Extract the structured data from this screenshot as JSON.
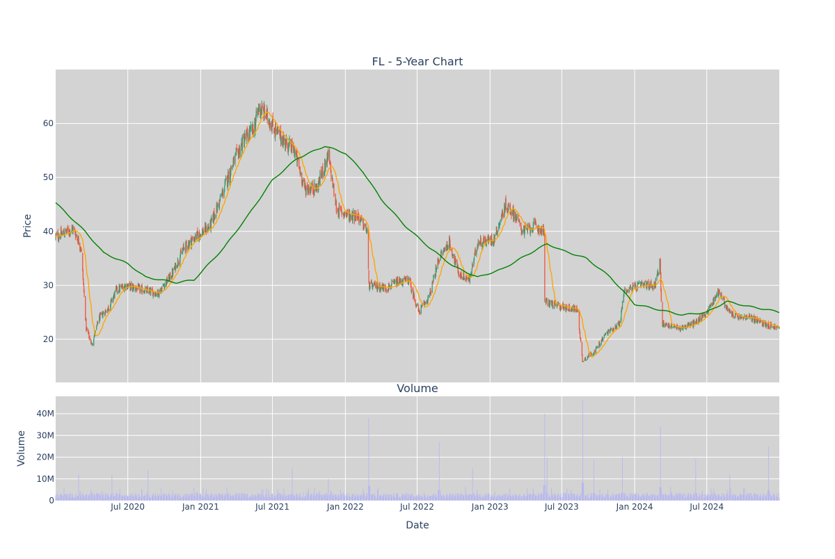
{
  "chart_data": [
    {
      "type": "candlestick",
      "title": "FL - 5-Year Chart",
      "xlabel": "",
      "ylabel": "Price",
      "x_range": [
        "2020-01-01",
        "2024-12-31"
      ],
      "ylim": [
        12,
        70
      ],
      "yticks": [
        20,
        30,
        40,
        50,
        60
      ],
      "grid": true,
      "colors": {
        "increasing": "#3d9970",
        "decreasing": "#ef553b",
        "ma_short": "#ffa500",
        "ma_long": "#008000",
        "plot_bg": "#d3d3d3"
      },
      "close_anchors": [
        [
          "2020-01-01",
          39
        ],
        [
          "2020-02-15",
          40.5
        ],
        [
          "2020-03-05",
          37
        ],
        [
          "2020-03-18",
          22
        ],
        [
          "2020-04-01",
          19
        ],
        [
          "2020-04-20",
          24
        ],
        [
          "2020-05-15",
          26
        ],
        [
          "2020-06-01",
          29
        ],
        [
          "2020-06-25",
          30
        ],
        [
          "2020-08-15",
          29
        ],
        [
          "2020-09-15",
          28.5
        ],
        [
          "2020-10-20",
          32
        ],
        [
          "2020-11-20",
          37
        ],
        [
          "2020-12-20",
          39
        ],
        [
          "2021-01-25",
          41
        ],
        [
          "2021-02-20",
          46
        ],
        [
          "2021-03-20",
          52
        ],
        [
          "2021-04-20",
          57
        ],
        [
          "2021-05-15",
          59
        ],
        [
          "2021-05-28",
          63
        ],
        [
          "2021-06-20",
          61
        ],
        [
          "2021-07-15",
          58
        ],
        [
          "2021-08-10",
          56
        ],
        [
          "2021-08-25",
          55
        ],
        [
          "2021-09-20",
          48
        ],
        [
          "2021-10-20",
          48
        ],
        [
          "2021-11-19",
          54
        ],
        [
          "2021-12-10",
          44
        ],
        [
          "2022-01-10",
          43
        ],
        [
          "2022-01-31",
          43
        ],
        [
          "2022-02-25",
          40
        ],
        [
          "2022-03-01",
          30
        ],
        [
          "2022-04-15",
          29.5
        ],
        [
          "2022-05-10",
          30.5
        ],
        [
          "2022-06-10",
          31
        ],
        [
          "2022-07-05",
          25
        ],
        [
          "2022-08-01",
          28
        ],
        [
          "2022-08-25",
          35
        ],
        [
          "2022-09-20",
          38
        ],
        [
          "2022-10-15",
          32
        ],
        [
          "2022-11-10",
          31
        ],
        [
          "2022-12-01",
          38
        ],
        [
          "2023-01-10",
          38.5
        ],
        [
          "2023-02-10",
          45
        ],
        [
          "2023-03-05",
          43
        ],
        [
          "2023-03-25",
          40
        ],
        [
          "2023-04-25",
          41
        ],
        [
          "2023-05-18",
          40
        ],
        [
          "2023-05-19",
          27
        ],
        [
          "2023-07-01",
          26
        ],
        [
          "2023-08-10",
          25.5
        ],
        [
          "2023-08-22",
          16
        ],
        [
          "2023-09-25",
          18
        ],
        [
          "2023-10-20",
          21
        ],
        [
          "2023-11-25",
          23
        ],
        [
          "2023-12-05",
          29
        ],
        [
          "2024-01-15",
          30
        ],
        [
          "2024-02-20",
          30
        ],
        [
          "2024-03-05",
          34
        ],
        [
          "2024-03-10",
          23
        ],
        [
          "2024-04-20",
          22
        ],
        [
          "2024-06-01",
          23
        ],
        [
          "2024-07-01",
          25
        ],
        [
          "2024-08-01",
          29
        ],
        [
          "2024-08-25",
          25
        ],
        [
          "2024-09-20",
          24
        ],
        [
          "2024-10-20",
          24
        ],
        [
          "2024-11-20",
          23
        ],
        [
          "2024-12-31",
          22
        ]
      ],
      "ma_long_anchors": [
        [
          "2020-01-01",
          45.3
        ],
        [
          "2020-03-15",
          40
        ],
        [
          "2020-05-01",
          36
        ],
        [
          "2020-07-01",
          34
        ],
        [
          "2020-08-15",
          31.5
        ],
        [
          "2020-11-01",
          30.5
        ],
        [
          "2020-12-15",
          31
        ],
        [
          "2021-03-01",
          37
        ],
        [
          "2021-05-01",
          43
        ],
        [
          "2021-07-01",
          49.5
        ],
        [
          "2021-09-01",
          53.5
        ],
        [
          "2021-11-10",
          55.8
        ],
        [
          "2022-01-01",
          54.5
        ],
        [
          "2022-02-15",
          51
        ],
        [
          "2022-04-01",
          46
        ],
        [
          "2022-06-01",
          41
        ],
        [
          "2022-08-01",
          37
        ],
        [
          "2022-10-01",
          33.5
        ],
        [
          "2022-12-01",
          31.5
        ],
        [
          "2023-02-01",
          33
        ],
        [
          "2023-04-01",
          35.5
        ],
        [
          "2023-05-25",
          37.7
        ],
        [
          "2023-07-01",
          36.5
        ],
        [
          "2023-09-01",
          35
        ],
        [
          "2023-11-01",
          31.5
        ],
        [
          "2024-01-01",
          26.5
        ],
        [
          "2024-03-01",
          25.5
        ],
        [
          "2024-05-01",
          24.5
        ],
        [
          "2024-07-01",
          25
        ],
        [
          "2024-08-20",
          27
        ],
        [
          "2024-10-20",
          26
        ],
        [
          "2024-12-01",
          25.5
        ],
        [
          "2024-12-31",
          25
        ]
      ]
    },
    {
      "type": "bar",
      "title": "Volume",
      "xlabel": "Date",
      "ylabel": "Volume",
      "ylim": [
        0,
        48000000
      ],
      "yticks": [
        0,
        10000000,
        20000000,
        30000000,
        40000000
      ],
      "ytick_labels": [
        "0",
        "10M",
        "20M",
        "30M",
        "40M"
      ],
      "xticks": [
        "2020-07-01",
        "2021-01-01",
        "2021-07-01",
        "2022-01-01",
        "2022-07-01",
        "2023-01-01",
        "2023-07-01",
        "2024-01-01",
        "2024-07-01"
      ],
      "xtick_labels": [
        "Jul 2020",
        "Jan 2021",
        "Jul 2021",
        "Jan 2022",
        "Jul 2022",
        "Jan 2023",
        "Jul 2023",
        "Jan 2024",
        "Jul 2024"
      ],
      "grid": true,
      "colors": {
        "bar": "#b8b8f0",
        "plot_bg": "#d3d3d3"
      },
      "baseline_millions": 2.5,
      "spikes": [
        [
          "2020-02-28",
          12
        ],
        [
          "2020-05-22",
          12
        ],
        [
          "2020-08-21",
          14
        ],
        [
          "2021-08-20",
          15
        ],
        [
          "2021-11-19",
          10
        ],
        [
          "2022-03-01",
          38
        ],
        [
          "2022-08-26",
          27
        ],
        [
          "2022-11-18",
          15
        ],
        [
          "2023-05-19",
          40
        ],
        [
          "2023-05-25",
          20
        ],
        [
          "2023-08-23",
          46
        ],
        [
          "2023-09-20",
          19
        ],
        [
          "2023-12-01",
          20
        ],
        [
          "2024-03-06",
          34
        ],
        [
          "2024-06-03",
          19
        ],
        [
          "2024-08-28",
          12
        ],
        [
          "2024-12-04",
          25
        ]
      ]
    }
  ]
}
